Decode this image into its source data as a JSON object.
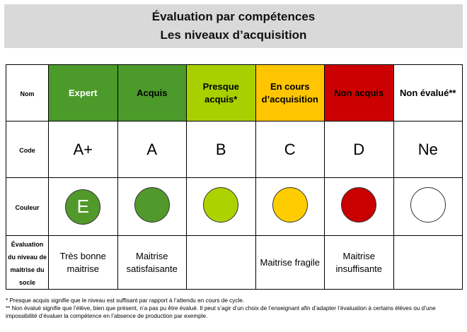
{
  "title": {
    "line1": "Évaluation par compétences",
    "line2": "Les niveaux d’acquisition"
  },
  "row_labels": {
    "name": "Nom",
    "code": "Code",
    "color": "Couleur",
    "evaluation": "Évaluation du niveau de maitrise du socle"
  },
  "levels": [
    {
      "name": "Expert",
      "code": "A+",
      "bg": "#4c9a2a",
      "name_color": "#ffffff",
      "dot_color": "#52992b",
      "dot_letter": "E",
      "evaluation": "Très bonne maitrise"
    },
    {
      "name": "Acquis",
      "code": "A",
      "bg": "#4c9a2a",
      "name_color": "#000000",
      "dot_color": "#52992b",
      "dot_letter": "",
      "evaluation": "Maitrise satisfaisante"
    },
    {
      "name": "Presque acquis*",
      "code": "B",
      "bg": "#a8d000",
      "name_color": "#000000",
      "dot_color": "#acd300",
      "dot_letter": "",
      "evaluation": ""
    },
    {
      "name": "En cours d’acquisition",
      "code": "C",
      "bg": "#ffc500",
      "name_color": "#000000",
      "dot_color": "#ffcc00",
      "dot_letter": "",
      "evaluation": "Maitrise fragile"
    },
    {
      "name": "Non acquis",
      "code": "D",
      "bg": "#cc0000",
      "name_color": "#000000",
      "dot_color": "#c80000",
      "dot_letter": "",
      "evaluation": "Maitrise insuffisante"
    },
    {
      "name": "Non évalué**",
      "code": "Ne",
      "bg": "#ffffff",
      "name_color": "#000000",
      "dot_color": "#ffffff",
      "dot_letter": "",
      "evaluation": ""
    }
  ],
  "footnotes": {
    "note1": "* Presque acquis signifie que le niveau est suffisant par rapport à l’attendu en cours de cycle.",
    "note2": "** Non évalué signifie que l’élève, bien que présent, n’a pas pu être évalué. Il peut s’agir d’un choix de l’enseignant afin d’adapter l’évaluation à certains élèves ou d’une impossibilité d’évaluer la compétence en l’absence de production par exemple."
  }
}
